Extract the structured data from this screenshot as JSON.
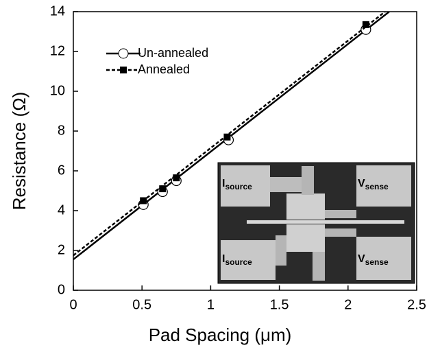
{
  "chart_data": {
    "type": "scatter",
    "x_label": "Pad Spacing (μm)",
    "y_label": "Resistance (Ω)",
    "xlim": [
      0,
      2.5
    ],
    "ylim": [
      0,
      14
    ],
    "xticks": [
      0,
      0.5,
      1,
      1.5,
      2,
      2.5
    ],
    "yticks": [
      0,
      2,
      4,
      6,
      8,
      10,
      12,
      14
    ],
    "grid": false,
    "legend": "upper left",
    "series": [
      {
        "name": "Un-annealed",
        "color": "#000000",
        "marker": "circle",
        "line_style": "solid",
        "x": [
          0.51,
          0.65,
          0.75,
          1.13,
          2.13
        ],
        "values": [
          4.3,
          4.95,
          5.5,
          7.55,
          13.1
        ],
        "fit": {
          "x": [
            0,
            2.3
          ],
          "values": [
            1.55,
            14
          ]
        }
      },
      {
        "name": "Annealed",
        "color": "#000000",
        "marker": "square",
        "line_style": "dashed",
        "x": [
          0.51,
          0.65,
          0.75,
          1.12,
          2.13
        ],
        "values": [
          4.5,
          5.1,
          5.65,
          7.7,
          13.35
        ],
        "fit": {
          "x": [
            0,
            2.27
          ],
          "values": [
            1.75,
            14
          ]
        }
      }
    ],
    "inset_labels": [
      {
        "main": "I",
        "sub": "source"
      },
      {
        "main": "V",
        "sub": "sense"
      },
      {
        "main": "I",
        "sub": "source"
      },
      {
        "main": "V",
        "sub": "sense"
      }
    ]
  }
}
